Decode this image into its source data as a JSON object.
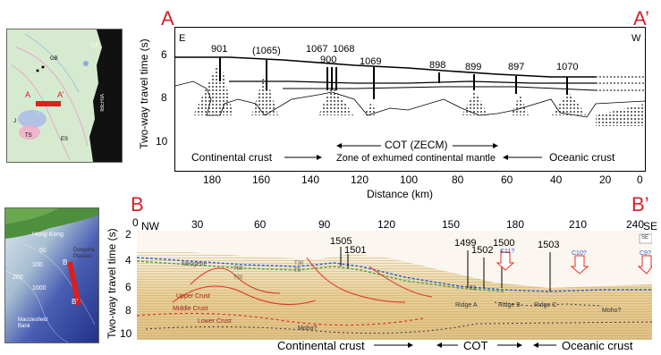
{
  "panel_a": {
    "letter_left": "A",
    "letter_right": "A’",
    "dir_left": "E",
    "dir_right": "W",
    "ylabel": "Two-way travel time (s)",
    "xlabel": "Distance (km)",
    "y_ticks": [
      "6",
      "8",
      "10"
    ],
    "x_ticks": [
      "180",
      "160",
      "140",
      "120",
      "100",
      "80",
      "60",
      "40",
      "20",
      "0"
    ],
    "sites": [
      "901",
      "(1065)",
      "1067",
      "1068",
      "900",
      "1069",
      "898",
      "899",
      "897",
      "1070"
    ],
    "cot_title": "COT (ZECM)",
    "cot_subtitle": "Zone of exhumed continental mantle",
    "left_zone": "Continental crust",
    "right_zone": "Oceanic crust",
    "map": {
      "label_gb": "GB",
      "label_cf": "CF",
      "label_iberia": "IBERIA",
      "label_a": "A",
      "label_a_prime": "A’",
      "label_j": "J",
      "label_ts": "TS",
      "label_es": "ES"
    }
  },
  "panel_b": {
    "letter_left": "B",
    "letter_right": "B’",
    "dir_left": "NW",
    "dir_right": "SE",
    "ylabel": "Two-way travel time (s)",
    "y_ticks": [
      "2",
      "4",
      "6",
      "8",
      "10"
    ],
    "x_ticks": [
      "0",
      "30",
      "60",
      "90",
      "120",
      "150",
      "180",
      "210",
      "240"
    ],
    "sites": [
      "1505",
      "1501",
      "1499",
      "1502",
      "1500",
      "1503"
    ],
    "proposed_sites": [
      "C11?",
      "C10?",
      "C9?"
    ],
    "se_box": "SE",
    "layers": [
      "Neogene",
      "Upper Crust",
      "Middle Crust",
      "Lower Crust",
      "Moho?",
      "Moho?"
    ],
    "ridges": [
      "Ridge A",
      "Ridge B",
      "Ridge C"
    ],
    "horizon_labels": [
      "T60",
      "T70",
      "T30",
      "T0"
    ],
    "extra_label": "F2",
    "left_zone": "Continental crust",
    "cot": "COT",
    "right_zone": "Oceanic crust",
    "map": {
      "label_hk": "Hong Kong",
      "label_dp": "Dongsha Plateau",
      "label_b": "B",
      "label_b_prime": "B’",
      "label_50": "50",
      "label_100": "100",
      "label_200": "200",
      "label_1000": "1000",
      "label_mb": "Macclesfield Bank"
    }
  }
}
